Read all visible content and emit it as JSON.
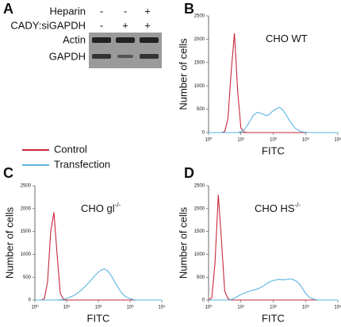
{
  "blot": {
    "panel_label": "A",
    "rows": [
      {
        "label": "Heparin",
        "signs": [
          "-",
          "-",
          "+"
        ]
      },
      {
        "label": "CADY:siGAPDH",
        "signs": [
          "-",
          "+",
          "+"
        ]
      }
    ],
    "bands": [
      "Actin",
      "GAPDH"
    ]
  },
  "chart_data": [
    {
      "type": "line",
      "panel_label": "B",
      "annotation": {
        "text": "CHO WT"
      },
      "xlabel": "FITC",
      "ylabel": "Number of cells",
      "xscale": "log",
      "xlim": [
        1,
        10000
      ],
      "xticks": [
        {
          "value": 1,
          "label": "10⁰"
        },
        {
          "value": 10,
          "label": "10¹"
        },
        {
          "value": 100,
          "label": "10²"
        },
        {
          "value": 1000,
          "label": "10³"
        },
        {
          "value": 10000,
          "label": "10⁴"
        }
      ],
      "ylim": [
        0,
        2500
      ],
      "yticks": [
        0,
        500,
        1000,
        1500,
        2000,
        2500
      ],
      "x": [
        1,
        1.26,
        1.58,
        2,
        2.51,
        3.16,
        3.98,
        5.01,
        6.31,
        7.94,
        10,
        12.6,
        15.8,
        20,
        25.1,
        31.6,
        39.8,
        50.1,
        63.1,
        79.4,
        100,
        126,
        158,
        200,
        251,
        316,
        398,
        501,
        631,
        794,
        1000,
        1259,
        1585,
        1995,
        2512,
        3162,
        3981,
        5012,
        6310,
        7943,
        10000
      ],
      "series": [
        {
          "name": "Control",
          "color": "#c8283c",
          "values": [
            0,
            0,
            0,
            0,
            0,
            20,
            300,
            1300,
            2130,
            900,
            100,
            10,
            0,
            0,
            0,
            0,
            0,
            0,
            0,
            0,
            0,
            0,
            0,
            0,
            0,
            0,
            0,
            0,
            0,
            0,
            0,
            0,
            0,
            0,
            0,
            0,
            0,
            0,
            0,
            0,
            0
          ]
        },
        {
          "name": "Transfection",
          "color": "#5ab4e0",
          "values": [
            0,
            0,
            0,
            0,
            0,
            0,
            0,
            0,
            0,
            0,
            20,
            60,
            150,
            270,
            380,
            430,
            420,
            390,
            360,
            400,
            470,
            510,
            540,
            480,
            380,
            260,
            160,
            80,
            40,
            15,
            5,
            0,
            0,
            0,
            0,
            0,
            0,
            0,
            0,
            0,
            0
          ]
        }
      ]
    },
    {
      "type": "line",
      "panel_label": "C",
      "annotation": {
        "text": "CHO gl",
        "superscript": "-/-"
      },
      "xlabel": "FITC",
      "ylabel": "Number of cells",
      "xscale": "log",
      "xlim": [
        1,
        10000
      ],
      "xticks": [
        {
          "value": 1,
          "label": "10⁰"
        },
        {
          "value": 10,
          "label": "10¹"
        },
        {
          "value": 100,
          "label": "10²"
        },
        {
          "value": 1000,
          "label": "10³"
        },
        {
          "value": 10000,
          "label": "10⁴"
        }
      ],
      "ylim": [
        0,
        2500
      ],
      "yticks": [
        0,
        500,
        1000,
        1500,
        2000,
        2500
      ],
      "x": [
        1,
        1.26,
        1.58,
        2,
        2.51,
        3.16,
        3.98,
        5.01,
        6.31,
        7.94,
        10,
        12.6,
        15.8,
        20,
        25.1,
        31.6,
        39.8,
        50.1,
        63.1,
        79.4,
        100,
        126,
        158,
        200,
        251,
        316,
        398,
        501,
        631,
        794,
        1000,
        1259,
        1585,
        1995,
        2512,
        3162,
        3981,
        5012,
        6310,
        7943,
        10000
      ],
      "series": [
        {
          "name": "Control",
          "color": "#c8283c",
          "values": [
            0,
            0,
            0,
            30,
            400,
            1500,
            1920,
            1000,
            150,
            20,
            0,
            0,
            0,
            0,
            0,
            0,
            0,
            0,
            0,
            0,
            0,
            0,
            0,
            0,
            0,
            0,
            0,
            0,
            0,
            0,
            0,
            0,
            0,
            0,
            0,
            0,
            0,
            0,
            0,
            0,
            0
          ]
        },
        {
          "name": "Transfection",
          "color": "#5ab4e0",
          "values": [
            0,
            0,
            0,
            0,
            0,
            0,
            0,
            0,
            5,
            15,
            30,
            60,
            90,
            130,
            180,
            240,
            310,
            380,
            460,
            540,
            610,
            660,
            680,
            630,
            540,
            420,
            300,
            190,
            110,
            60,
            30,
            10,
            0,
            0,
            0,
            0,
            0,
            0,
            0,
            0,
            0
          ]
        }
      ]
    },
    {
      "type": "line",
      "panel_label": "D",
      "annotation": {
        "text": "CHO HS",
        "superscript": "-/-"
      },
      "xlabel": "FITC",
      "ylabel": "Number of cells",
      "xscale": "log",
      "xlim": [
        1,
        10000
      ],
      "xticks": [
        {
          "value": 1,
          "label": "10⁰"
        },
        {
          "value": 10,
          "label": "10¹"
        },
        {
          "value": 100,
          "label": "10²"
        },
        {
          "value": 1000,
          "label": "10³"
        },
        {
          "value": 10000,
          "label": "10⁴"
        }
      ],
      "ylim": [
        0,
        2500
      ],
      "yticks": [
        0,
        500,
        1000,
        1500,
        2000,
        2500
      ],
      "x": [
        1,
        1.26,
        1.58,
        2,
        2.51,
        3.16,
        3.98,
        5.01,
        6.31,
        7.94,
        10,
        12.6,
        15.8,
        20,
        25.1,
        31.6,
        39.8,
        50.1,
        63.1,
        79.4,
        100,
        126,
        158,
        200,
        251,
        316,
        398,
        501,
        631,
        794,
        1000,
        1259,
        1585,
        1995,
        2512,
        3162,
        3981,
        5012,
        6310,
        7943,
        10000
      ],
      "series": [
        {
          "name": "Control",
          "color": "#c8283c",
          "values": [
            0,
            50,
            800,
            2300,
            1300,
            200,
            30,
            0,
            0,
            0,
            0,
            0,
            0,
            0,
            0,
            0,
            0,
            0,
            0,
            0,
            0,
            0,
            0,
            0,
            0,
            0,
            0,
            0,
            0,
            0,
            0,
            0,
            0,
            0,
            0,
            0,
            0,
            0,
            0,
            0,
            0
          ]
        },
        {
          "name": "Transfection",
          "color": "#5ab4e0",
          "values": [
            0,
            0,
            0,
            0,
            0,
            0,
            0,
            10,
            40,
            80,
            120,
            150,
            180,
            200,
            220,
            240,
            270,
            310,
            360,
            400,
            430,
            440,
            450,
            440,
            450,
            460,
            450,
            420,
            360,
            260,
            150,
            70,
            30,
            10,
            0,
            0,
            0,
            0,
            0,
            0,
            0
          ]
        }
      ]
    }
  ]
}
